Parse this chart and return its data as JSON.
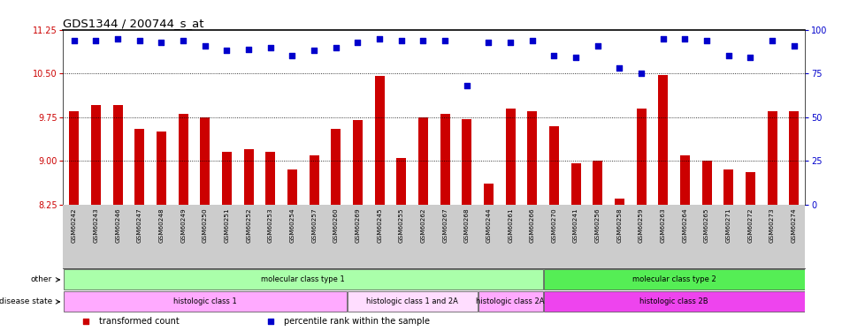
{
  "title": "GDS1344 / 200744_s_at",
  "samples": [
    "GSM60242",
    "GSM60243",
    "GSM60246",
    "GSM60247",
    "GSM60248",
    "GSM60249",
    "GSM60250",
    "GSM60251",
    "GSM60252",
    "GSM60253",
    "GSM60254",
    "GSM60257",
    "GSM60260",
    "GSM60269",
    "GSM60245",
    "GSM60255",
    "GSM60262",
    "GSM60267",
    "GSM60268",
    "GSM60244",
    "GSM60261",
    "GSM60266",
    "GSM60270",
    "GSM60241",
    "GSM60256",
    "GSM60258",
    "GSM60259",
    "GSM60263",
    "GSM60264",
    "GSM60265",
    "GSM60271",
    "GSM60272",
    "GSM60273",
    "GSM60274"
  ],
  "bar_values": [
    9.85,
    9.95,
    9.95,
    9.55,
    9.5,
    9.8,
    9.75,
    9.15,
    9.2,
    9.15,
    8.85,
    9.1,
    9.55,
    9.7,
    10.45,
    9.05,
    9.75,
    9.8,
    9.72,
    8.6,
    9.9,
    9.85,
    9.6,
    8.95,
    9.0,
    8.35,
    9.9,
    10.48,
    9.1,
    9.0,
    8.85,
    8.8,
    9.85,
    9.85
  ],
  "percentile_values": [
    94,
    94,
    95,
    94,
    93,
    94,
    91,
    88,
    89,
    90,
    85,
    88,
    90,
    93,
    95,
    94,
    94,
    94,
    68,
    93,
    93,
    94,
    85,
    84,
    91,
    78,
    75,
    95,
    95,
    94,
    85,
    84,
    94,
    91
  ],
  "bar_color": "#cc0000",
  "dot_color": "#0000cc",
  "ylim_left": [
    8.25,
    11.25
  ],
  "ylim_right": [
    0,
    100
  ],
  "yticks_left": [
    8.25,
    9.0,
    9.75,
    10.5,
    11.25
  ],
  "yticks_right": [
    0,
    25,
    50,
    75,
    100
  ],
  "grid_lines": [
    9.0,
    9.75,
    10.5
  ],
  "ticklabel_bg": "#cccccc",
  "annotation_rows": [
    {
      "label": "other",
      "segments": [
        {
          "text": "molecular class type 1",
          "start": 0,
          "end": 22,
          "color": "#aaffaa"
        },
        {
          "text": "molecular class type 2",
          "start": 22,
          "end": 34,
          "color": "#55ee55"
        }
      ]
    },
    {
      "label": "disease state",
      "segments": [
        {
          "text": "histologic class 1",
          "start": 0,
          "end": 13,
          "color": "#ffaaff"
        },
        {
          "text": "histologic class 1 and 2A",
          "start": 13,
          "end": 19,
          "color": "#ffddff"
        },
        {
          "text": "histologic class 2A",
          "start": 19,
          "end": 22,
          "color": "#ffaaff"
        },
        {
          "text": "histologic class 2B",
          "start": 22,
          "end": 34,
          "color": "#ee44ee"
        }
      ]
    }
  ],
  "legend_items": [
    {
      "color": "#cc0000",
      "label": "transformed count"
    },
    {
      "color": "#0000cc",
      "label": "percentile rank within the sample"
    }
  ]
}
